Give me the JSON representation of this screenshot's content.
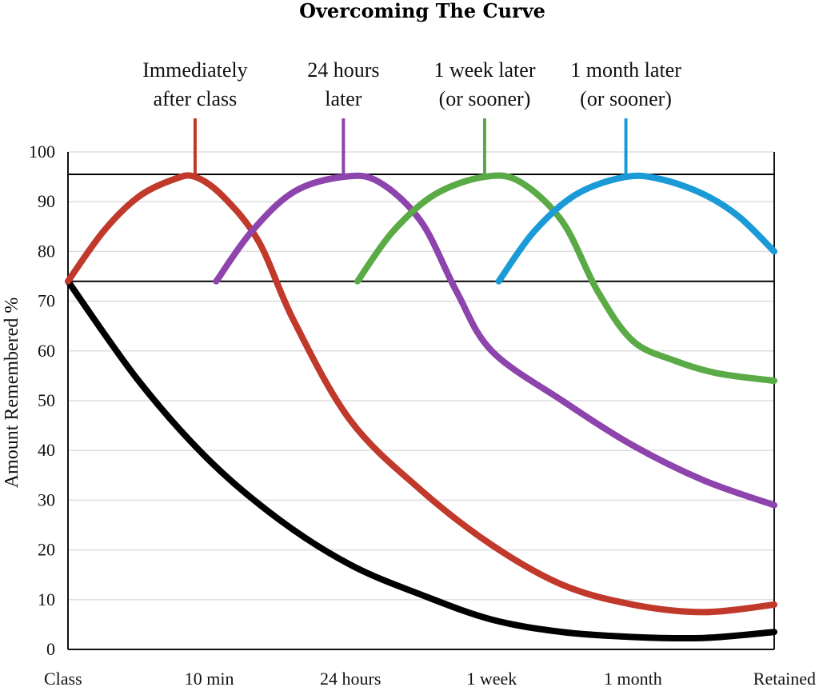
{
  "chart_data": {
    "type": "line",
    "title": "Overcoming The Curve",
    "ylabel": "Amount Remembered %",
    "xlabel": "",
    "ylim": [
      0,
      100
    ],
    "yticks": [
      0,
      10,
      20,
      30,
      40,
      50,
      60,
      70,
      80,
      90,
      100
    ],
    "categories": [
      "Class",
      "10 min",
      "24 hours",
      "1 week",
      "1 month",
      "Retained"
    ],
    "grid": true,
    "reference_lines": [
      {
        "y": 95.5,
        "color": "#000000"
      },
      {
        "y": 74,
        "color": "#000000"
      }
    ],
    "annotations": [
      {
        "lines": [
          "Immediately",
          "after class"
        ],
        "x": 0.9,
        "color": "#c0392b"
      },
      {
        "lines": [
          "24 hours",
          "later"
        ],
        "x": 1.95,
        "color": "#8e44ad"
      },
      {
        "lines": [
          "1 week later",
          "(or sooner)"
        ],
        "x": 2.95,
        "color": "#5aab46"
      },
      {
        "lines": [
          "1 month later",
          "(or sooner)"
        ],
        "x": 3.95,
        "color": "#1a9ad6"
      }
    ],
    "series": [
      {
        "color": "#000000",
        "x": [
          0,
          0.5,
          1,
          1.5,
          2,
          2.5,
          3,
          3.5,
          4,
          4.5,
          5
        ],
        "y": [
          74,
          54,
          38,
          26,
          17,
          11,
          6,
          3.5,
          2.5,
          2.3,
          3.5
        ]
      },
      {
        "color": "#c0392b",
        "x": [
          0,
          0.25,
          0.5,
          0.75,
          0.9,
          1.1,
          1.35,
          1.6,
          2,
          2.5,
          3,
          3.5,
          4,
          4.5,
          5
        ],
        "y": [
          74,
          84,
          91,
          94.5,
          95,
          91,
          82,
          66,
          46,
          32,
          21,
          13,
          9,
          7.5,
          9
        ]
      },
      {
        "color": "#8e44ad",
        "x": [
          1.05,
          1.3,
          1.6,
          1.95,
          2.2,
          2.5,
          2.75,
          3,
          3.5,
          4,
          4.5,
          5
        ],
        "y": [
          74,
          84,
          92,
          95,
          94,
          86,
          72,
          60,
          50,
          41,
          34,
          29
        ]
      },
      {
        "color": "#5aab46",
        "x": [
          2.05,
          2.3,
          2.6,
          2.95,
          3.2,
          3.5,
          3.75,
          4,
          4.3,
          4.6,
          5
        ],
        "y": [
          74,
          84,
          91.5,
          95,
          94,
          86,
          72,
          62,
          58,
          55.5,
          54
        ]
      },
      {
        "color": "#1a9ad6",
        "x": [
          3.05,
          3.3,
          3.6,
          3.95,
          4.2,
          4.5,
          4.75,
          5
        ],
        "y": [
          74,
          84,
          91.5,
          95,
          94.5,
          91.5,
          87,
          80
        ]
      }
    ]
  }
}
